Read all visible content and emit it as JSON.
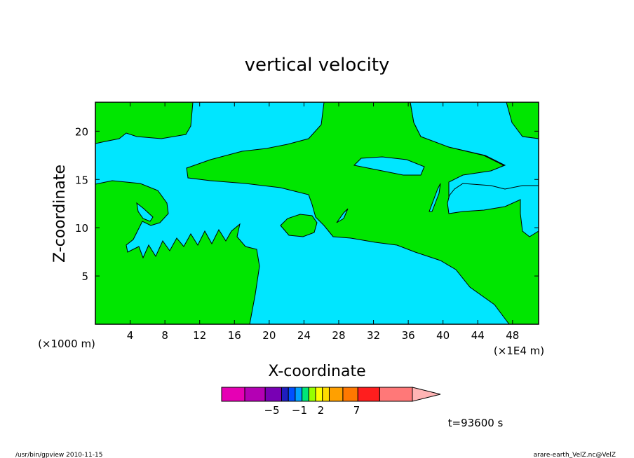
{
  "chart_data": {
    "type": "heatmap",
    "title": "vertical velocity",
    "xlabel": "X-coordinate",
    "ylabel": "Z-coordinate",
    "x_unit_left": "(×1000 m)",
    "x_unit_right": "(×1E4 m)",
    "xlim": [
      0,
      51
    ],
    "ylim": [
      0,
      23
    ],
    "x_ticks": [
      4,
      8,
      12,
      16,
      20,
      24,
      28,
      32,
      36,
      40,
      44,
      48
    ],
    "y_ticks": [
      5,
      10,
      15,
      20
    ],
    "colorbar": {
      "colors": [
        "#e600b4",
        "#b400b4",
        "#7800b4",
        "#1e1ebe",
        "#0050ff",
        "#00a0ff",
        "#00e678",
        "#96ff00",
        "#ffff00",
        "#ffdc00",
        "#ffa000",
        "#ff7800",
        "#ff1e1e",
        "#ff7878",
        "#ffb4b4"
      ],
      "labels": [
        {
          "text": "−5",
          "pos": 0.263
        },
        {
          "text": "−1",
          "pos": 0.408
        },
        {
          "text": "2",
          "pos": 0.52
        },
        {
          "text": "7",
          "pos": 0.708
        }
      ]
    },
    "field_colors": {
      "negative": "#00e6ff",
      "positive": "#00e600"
    },
    "time_label": "t=93600 s"
  },
  "footer": {
    "left": "/usr/bin/gpview   2010-11-15",
    "right": "arare-earth_VelZ.nc@VelZ"
  }
}
